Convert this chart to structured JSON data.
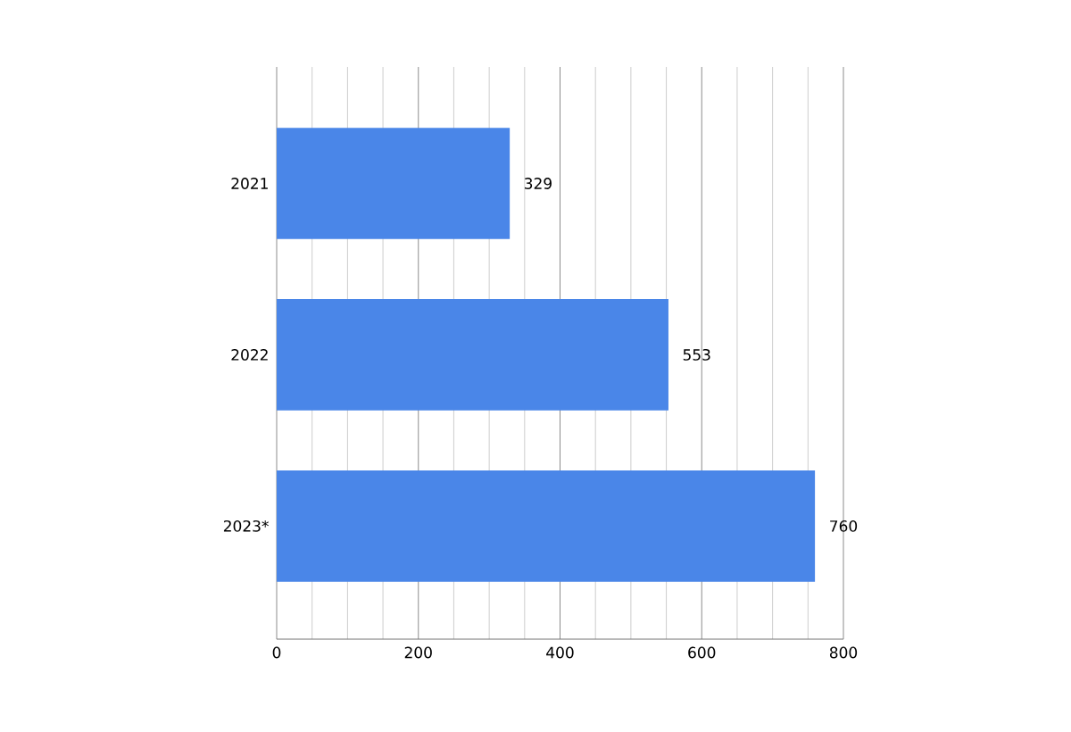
{
  "chart_data": {
    "type": "bar",
    "orientation": "horizontal",
    "categories": [
      "2021",
      "2022",
      "2023*"
    ],
    "values": [
      329,
      553,
      760
    ],
    "color": "#4a86e8",
    "xlim": [
      0,
      800
    ],
    "xticks": [
      0,
      {
        "value": 50,
        "label": null
      },
      {
        "value": 100,
        "label": null
      },
      {
        "value": 150,
        "label": null
      },
      200,
      {
        "value": 250,
        "label": null
      },
      {
        "value": 300,
        "label": null
      },
      {
        "value": 350,
        "label": null
      },
      400,
      {
        "value": 450,
        "label": null
      },
      {
        "value": 500,
        "label": null
      },
      {
        "value": 550,
        "label": null
      },
      600,
      {
        "value": 650,
        "label": null
      },
      {
        "value": 700,
        "label": null
      },
      {
        "value": 750,
        "label": null
      },
      800
    ],
    "grid": "x",
    "data_labels": true
  }
}
